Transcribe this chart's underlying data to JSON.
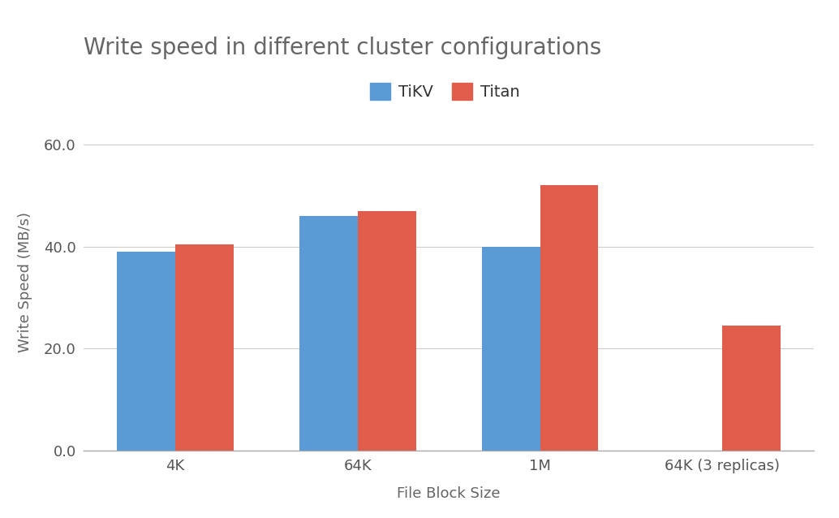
{
  "title": "Write speed in different cluster configurations",
  "xlabel": "File Block Size",
  "ylabel": "Write Speed (MB/s)",
  "categories": [
    "4K",
    "64K",
    "1M",
    "64K (3 replicas)"
  ],
  "tikv_values": [
    39.0,
    46.0,
    40.0,
    null
  ],
  "titan_values": [
    40.5,
    47.0,
    52.0,
    24.5
  ],
  "tikv_color": "#5b9bd5",
  "titan_color": "#e05c4b",
  "ylim": [
    0,
    66
  ],
  "yticks": [
    0.0,
    20.0,
    40.0,
    60.0
  ],
  "background_color": "#ffffff",
  "grid_color": "#cccccc",
  "title_fontsize": 20,
  "axis_label_fontsize": 13,
  "tick_fontsize": 13,
  "legend_fontsize": 14,
  "bar_width": 0.32,
  "figsize": [
    10.34,
    6.38
  ],
  "dpi": 100,
  "tick_color": "#555555",
  "title_color": "#666666",
  "xlabel_color": "#666666",
  "ylabel_color": "#666666"
}
